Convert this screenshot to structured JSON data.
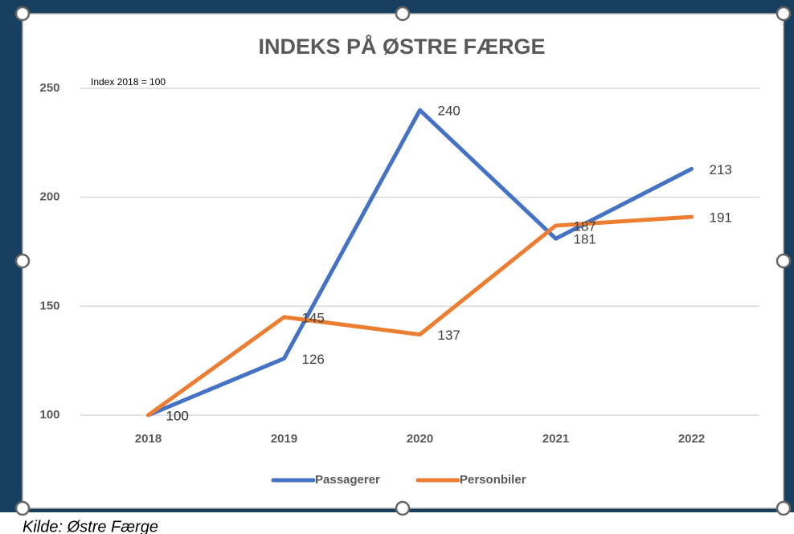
{
  "chart_data": {
    "type": "line",
    "title": "INDEKS PÅ ØSTRE FÆRGE",
    "annotation": "Index 2018 = 100",
    "categories": [
      "2018",
      "2019",
      "2020",
      "2021",
      "2022"
    ],
    "series": [
      {
        "name": "Passagerer",
        "color": "#4472c4",
        "values": [
          100,
          126,
          240,
          181,
          213
        ]
      },
      {
        "name": "Personbiler",
        "color": "#ed7d31",
        "values": [
          100,
          145,
          137,
          187,
          191
        ]
      }
    ],
    "ylim": [
      100,
      250
    ],
    "yticks": [
      100,
      150,
      200,
      250
    ],
    "grid": true,
    "legend": "bottom"
  },
  "source": "Kilde: Østre Færge"
}
